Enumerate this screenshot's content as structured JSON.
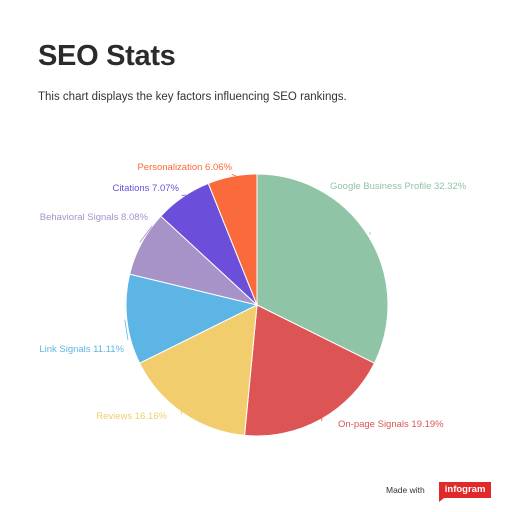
{
  "title": "SEO Stats",
  "subtitle": "This chart displays the key factors influencing SEO rankings.",
  "footer": {
    "made_with": "Made with",
    "brand": "infogram"
  },
  "chart_data": {
    "type": "pie",
    "legend": "none (labels on slices)",
    "slices": [
      {
        "label": "Google Business Profile",
        "value": 32.32,
        "display": "32.32%",
        "color": "#8fc4a6"
      },
      {
        "label": "On-page Signals",
        "value": 19.19,
        "display": "19.19%",
        "color": "#dc5454"
      },
      {
        "label": "Reviews",
        "value": 16.16,
        "display": "16.16%",
        "color": "#f2cd6d"
      },
      {
        "label": "Link Signals",
        "value": 11.11,
        "display": "11.11%",
        "color": "#5db5e5"
      },
      {
        "label": "Behavioral Signals",
        "value": 8.08,
        "display": "8.08%",
        "color": "#a893c9"
      },
      {
        "label": "Citations",
        "value": 7.07,
        "display": "7.07%",
        "color": "#6b4fdb"
      },
      {
        "label": "Personalization",
        "value": 6.06,
        "display": "6.06%",
        "color": "#fb6a3b"
      }
    ]
  }
}
